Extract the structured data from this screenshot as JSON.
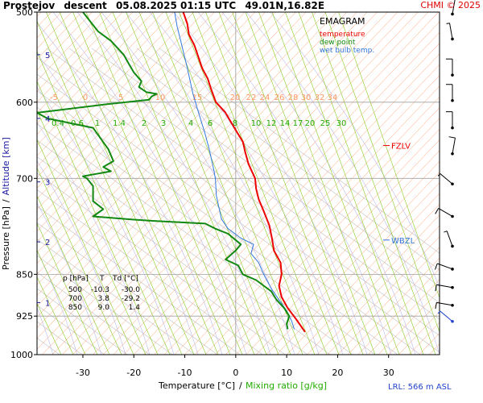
{
  "header": {
    "station": "Prostejov",
    "mode": "descent",
    "datetime": "05.08.2025 01:15 UTC",
    "coords": "49.01N,16.82E",
    "copyright": "CHMI © 2025"
  },
  "legend": {
    "title": "EMAGRAM",
    "temperature": "temperature",
    "dew_point": "dew point",
    "wet_bulb": "wet bulb temp."
  },
  "colors": {
    "temperature": "#ee0000",
    "dew_point": "#118811",
    "wet_bulb": "#3377dd",
    "isotherm": "#ff9a66",
    "mixing_ratio": "#88cc22",
    "dry_adiabat": "#c0c0c0",
    "moist_adiabat": "#bbbbee",
    "isobar": "#a0a0a0",
    "axis_text": "#000000",
    "altitude_text": "#1a1aa0",
    "mixing_text": "#22aa00",
    "isotherm_text": "#ff9966",
    "wind": "#000000",
    "wind_low": "#2244cc",
    "copyright": "#dd0000"
  },
  "axes": {
    "xlabel_temperature": "Temperature [°C]",
    "xlabel_sep": "/",
    "xlabel_mixing": "Mixing ratio [g/kg]",
    "ylabel_pressure": "Pressure [hPa]",
    "ylabel_sep": "/",
    "ylabel_altitude": "Altitude [km]"
  },
  "markers": {
    "fzlv": "FZLV",
    "wbzl": "WBZL"
  },
  "lrl": "LRL: 566 m ASL",
  "table": {
    "headers": [
      "p [hPa]",
      "T",
      "Td [°C]"
    ],
    "rows": [
      [
        "500",
        "-10.3",
        "-30.0"
      ],
      [
        "700",
        "3.8",
        "-29.2"
      ],
      [
        "850",
        "9.0",
        "1.4"
      ]
    ]
  },
  "chart_data": {
    "type": "line",
    "title": "EMAGRAM",
    "xlabel": "Temperature [°C]",
    "ylabel": "Pressure [hPa]",
    "xlim": [
      -39,
      40
    ],
    "ylim": [
      1000,
      500
    ],
    "yscale": "log",
    "x_ticks": [
      -30,
      -20,
      -10,
      0,
      10,
      20,
      30
    ],
    "y_ticks": [
      500,
      600,
      700,
      850,
      925,
      1000
    ],
    "altitude_ticks": [
      {
        "km": 1,
        "p": 900
      },
      {
        "km": 2,
        "p": 796
      },
      {
        "km": 3,
        "p": 705
      },
      {
        "km": 4,
        "p": 620
      },
      {
        "km": 5,
        "p": 545
      }
    ],
    "isotherm_labels": [
      -5,
      0,
      5,
      10,
      15,
      20,
      22,
      24,
      26,
      28,
      30,
      32,
      34
    ],
    "isotherm_labels_p": 600,
    "mixing_ratio_labels": [
      "0.4",
      "0.6",
      "1",
      "1.4",
      "2",
      "3",
      "4",
      "6",
      "8",
      "10",
      "12",
      "14",
      "17",
      "20",
      "25",
      "30"
    ],
    "mixing_ratio_label_values": [
      0.4,
      0.6,
      1,
      1.4,
      2,
      3,
      4,
      6,
      8,
      10,
      12,
      14,
      17,
      20,
      25,
      30
    ],
    "mixing_ratio_labels_p": 625,
    "fzlv_p": 655,
    "wbzl_p": 793,
    "series": [
      {
        "name": "temperature",
        "points": [
          [
            -10.3,
            500
          ],
          [
            -9.5,
            512
          ],
          [
            -9.2,
            523
          ],
          [
            -8.1,
            535
          ],
          [
            -7.3,
            548
          ],
          [
            -6.6,
            560
          ],
          [
            -5.5,
            572
          ],
          [
            -4.8,
            585
          ],
          [
            -3.9,
            600
          ],
          [
            -2.1,
            612
          ],
          [
            -0.9,
            625
          ],
          [
            0.2,
            637
          ],
          [
            1.4,
            650
          ],
          [
            1.9,
            665
          ],
          [
            2.5,
            680
          ],
          [
            3.8,
            700
          ],
          [
            4.0,
            715
          ],
          [
            4.5,
            730
          ],
          [
            5.5,
            748
          ],
          [
            6.6,
            770
          ],
          [
            7.1,
            790
          ],
          [
            7.5,
            810
          ],
          [
            8.8,
            830
          ],
          [
            9.0,
            850
          ],
          [
            8.5,
            870
          ],
          [
            9.0,
            890
          ],
          [
            10.2,
            910
          ],
          [
            11.8,
            930
          ],
          [
            13.6,
            955
          ]
        ]
      },
      {
        "name": "dew point",
        "points": [
          [
            -30.0,
            500
          ],
          [
            -28.5,
            510
          ],
          [
            -27.0,
            520
          ],
          [
            -24.5,
            530
          ],
          [
            -22.0,
            545
          ],
          [
            -21.0,
            555
          ],
          [
            -20.0,
            565
          ],
          [
            -18.5,
            575
          ],
          [
            -19.0,
            582
          ],
          [
            -17.5,
            588
          ],
          [
            -15.5,
            590
          ],
          [
            -16.5,
            593
          ],
          [
            -17.0,
            597
          ],
          [
            -26.0,
            603
          ],
          [
            -39.0,
            613
          ],
          [
            -37.0,
            620
          ],
          [
            -28.0,
            632
          ],
          [
            -25.0,
            660
          ],
          [
            -24.0,
            676
          ],
          [
            -26.0,
            684
          ],
          [
            -24.5,
            690
          ],
          [
            -30.0,
            697
          ],
          [
            -29.2,
            700
          ],
          [
            -28.0,
            711
          ],
          [
            -28.0,
            733
          ],
          [
            -26.0,
            745
          ],
          [
            -28.0,
            756
          ],
          [
            -20.0,
            761
          ],
          [
            -16.0,
            763
          ],
          [
            -6.0,
            767
          ],
          [
            -4.0,
            775
          ],
          [
            -1.5,
            783
          ],
          [
            1.0,
            800
          ],
          [
            0.0,
            810
          ],
          [
            -2.0,
            825
          ],
          [
            0.5,
            835
          ],
          [
            1.4,
            850
          ],
          [
            4.0,
            860
          ],
          [
            7.0,
            880
          ],
          [
            8.0,
            895
          ],
          [
            9.5,
            910
          ],
          [
            10.5,
            925
          ],
          [
            10.0,
            940
          ],
          [
            10.2,
            950
          ]
        ]
      },
      {
        "name": "wet bulb temp.",
        "points": [
          [
            -12.0,
            500
          ],
          [
            -11.5,
            515
          ],
          [
            -10.8,
            530
          ],
          [
            -9.5,
            560
          ],
          [
            -8.4,
            590
          ],
          [
            -7.2,
            615
          ],
          [
            -6.0,
            640
          ],
          [
            -5.2,
            660
          ],
          [
            -4.4,
            685
          ],
          [
            -4.0,
            700
          ],
          [
            -3.8,
            725
          ],
          [
            -2.8,
            760
          ],
          [
            -1.5,
            775
          ],
          [
            1.0,
            790
          ],
          [
            3.5,
            800
          ],
          [
            3.0,
            815
          ],
          [
            4.5,
            830
          ],
          [
            5.5,
            850
          ],
          [
            7.0,
            875
          ],
          [
            8.5,
            895
          ],
          [
            10.0,
            915
          ],
          [
            11.0,
            935
          ],
          [
            11.5,
            950
          ]
        ]
      }
    ],
    "wind_barbs": [
      {
        "p": 502,
        "dir": 10,
        "kt": 10
      },
      {
        "p": 528,
        "dir": 350,
        "kt": 5
      },
      {
        "p": 568,
        "dir": 360,
        "kt": 10
      },
      {
        "p": 598,
        "dir": 360,
        "kt": 10
      },
      {
        "p": 632,
        "dir": 360,
        "kt": 10
      },
      {
        "p": 666,
        "dir": 10,
        "kt": 10
      },
      {
        "p": 708,
        "dir": 310,
        "kt": 5
      },
      {
        "p": 756,
        "dir": 300,
        "kt": 10
      },
      {
        "p": 803,
        "dir": 340,
        "kt": 5
      },
      {
        "p": 841,
        "dir": 290,
        "kt": 10
      },
      {
        "p": 873,
        "dir": 280,
        "kt": 10
      },
      {
        "p": 905,
        "dir": 280,
        "kt": 10
      },
      {
        "p": 935,
        "dir": 310,
        "kt": 5
      }
    ]
  }
}
